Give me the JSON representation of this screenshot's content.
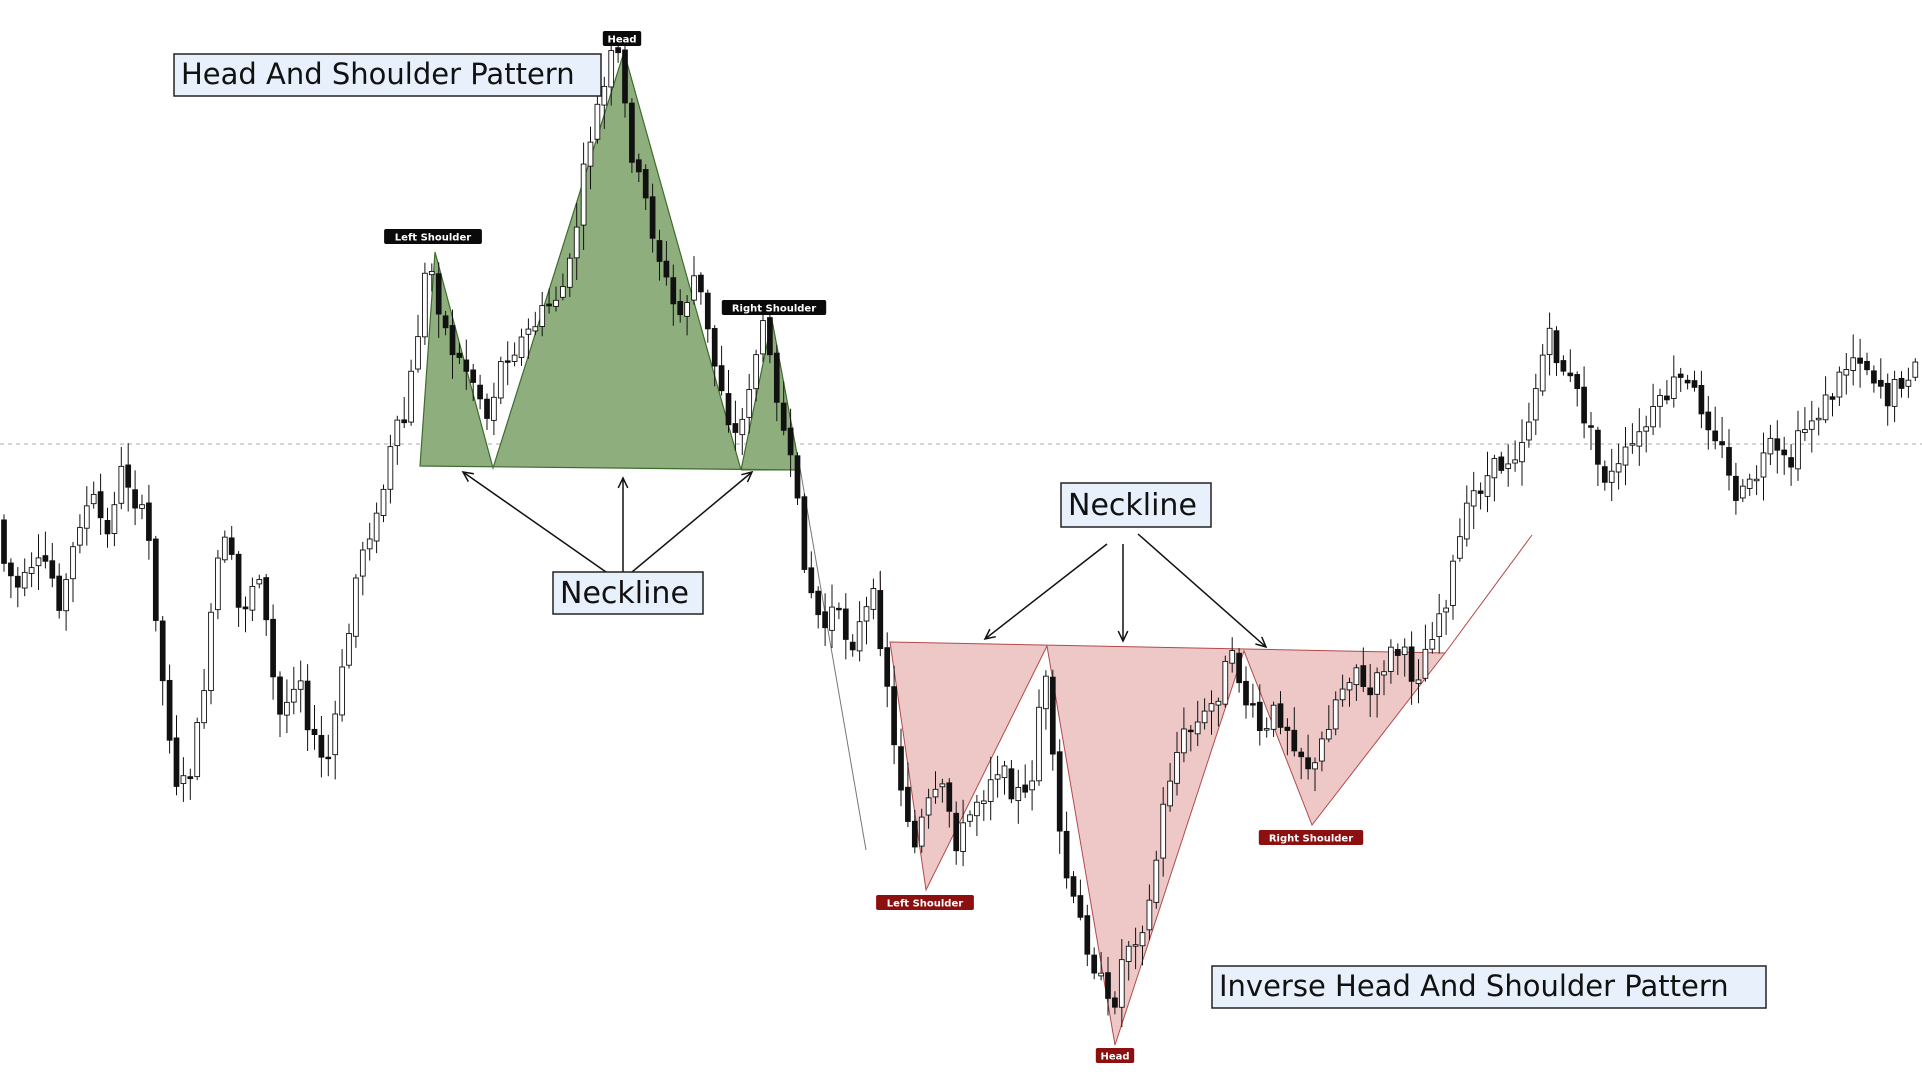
{
  "chart_data": {
    "type": "candlestick",
    "colors": {
      "bull_body": "#ffffff",
      "bear_body": "#111111",
      "wick": "#111111",
      "top_pattern_fill": "#8fae7e",
      "top_pattern_stroke": "#3e6b2e",
      "bottom_pattern_fill": "#e8b4b4",
      "bottom_pattern_stroke": "#b24a4a",
      "top_tag_bg": "#0a0a0a",
      "bottom_tag_bg": "#8c1010",
      "label_box_bg": "#e8f1fb",
      "reference_line": "#aaaaaa"
    },
    "annotations": {
      "title_top": "Head And Shoulder Pattern",
      "title_bottom": "Inverse Head And Shoulder Pattern",
      "neckline_top": "Neckline",
      "neckline_bottom": "Neckline",
      "top_tags": [
        "Left Shoulder",
        "Head",
        "Right Shoulder"
      ],
      "bottom_tags": [
        "Left Shoulder",
        "Head",
        "Right Shoulder"
      ]
    },
    "reference_line": "dashed horizontal",
    "grid": false
  }
}
